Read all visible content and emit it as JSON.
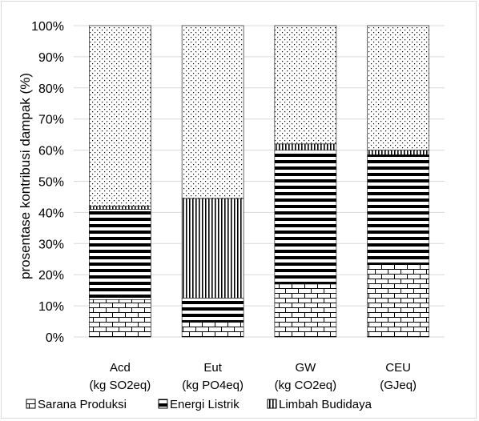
{
  "chart_data": {
    "type": "bar",
    "stacked": true,
    "percent": true,
    "ylabel": "prosentase kontribusi dampak (%)",
    "ylim": [
      0,
      100
    ],
    "y_ticks": [
      "0%",
      "10%",
      "20%",
      "30%",
      "40%",
      "50%",
      "60%",
      "70%",
      "80%",
      "90%",
      "100%"
    ],
    "categories": [
      {
        "name": "Acd",
        "unit": "(kg SO2eq)"
      },
      {
        "name": "Eut",
        "unit": "(kg PO4eq)"
      },
      {
        "name": "GW",
        "unit": "(kg CO2eq)"
      },
      {
        "name": "CEU",
        "unit": "(GJeq)"
      }
    ],
    "series": [
      {
        "name": "Sarana Produksi",
        "pattern": "brick",
        "values": [
          12,
          5,
          17,
          23.5
        ]
      },
      {
        "name": "Energi Listrik",
        "pattern": "horizontal-lines",
        "values": [
          29,
          7.5,
          43,
          35
        ]
      },
      {
        "name": "Limbah Budidaya",
        "pattern": "vertical-lines",
        "values": [
          1,
          32,
          2,
          1.5
        ]
      },
      {
        "pattern": "dots",
        "values": [
          58,
          55.5,
          38,
          40
        ]
      }
    ],
    "legend": {
      "position": "bottom"
    },
    "grid": true
  }
}
